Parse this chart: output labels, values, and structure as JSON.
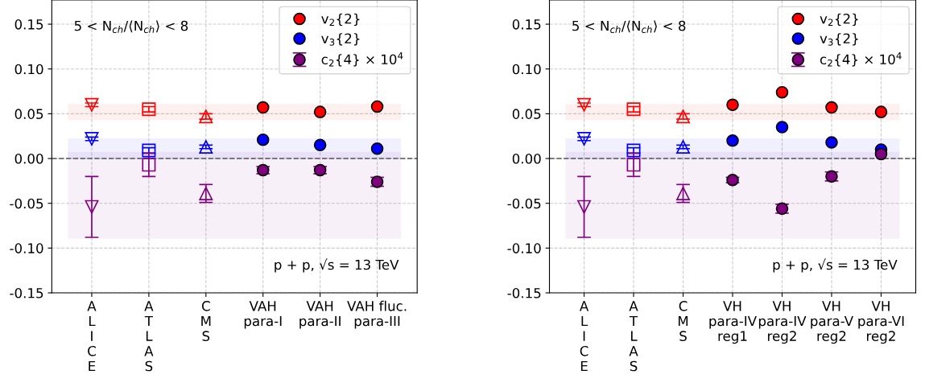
{
  "chart_data": [
    {
      "type": "scatter",
      "categories": [
        "A\nL\nI\nC\nE",
        "A\nT\nL\nA\nS",
        "C\nM\nS",
        "VAH\npara-I",
        "VAH\npara-II",
        "VAH fluc.\npara-III"
      ],
      "series": [
        {
          "name": "v$_{2}${2}",
          "color": "#ff0000",
          "marker": "circle",
          "values": [
            null,
            null,
            null,
            0.057,
            0.052,
            0.058
          ]
        },
        {
          "name": "v$_{3}${2}",
          "color": "#0000ff",
          "marker": "circle",
          "values": [
            null,
            null,
            null,
            0.021,
            0.015,
            0.011
          ]
        },
        {
          "name": "c$_{2}${4} × 10$^{4}$",
          "color": "#800080",
          "marker": "circle",
          "values": [
            null,
            null,
            null,
            -0.013,
            -0.013,
            -0.026
          ],
          "errors": [
            null,
            null,
            null,
            0.004,
            0.004,
            0.005
          ]
        },
        {
          "color": "#ff0000",
          "marker": "triangle_down",
          "values": [
            0.06,
            null,
            null,
            null,
            null,
            null
          ],
          "errors": [
            0.002,
            null,
            null,
            null,
            null,
            null
          ]
        },
        {
          "color": "#0000ff",
          "marker": "triangle_down",
          "values": [
            0.022,
            null,
            null,
            null,
            null,
            null
          ],
          "errors": [
            0.002,
            null,
            null,
            null,
            null,
            null
          ]
        },
        {
          "color": "#800080",
          "marker": "triangle_down",
          "values": [
            -0.054,
            null,
            null,
            null,
            null,
            null
          ],
          "errors": [
            0.034,
            null,
            null,
            null,
            null,
            null
          ]
        },
        {
          "color": "#ff0000",
          "marker": "square",
          "values": [
            null,
            0.055,
            null,
            null,
            null,
            null
          ],
          "errors": [
            null,
            0.003,
            null,
            null,
            null,
            null
          ]
        },
        {
          "color": "#0000ff",
          "marker": "square",
          "values": [
            null,
            0.009,
            null,
            null,
            null,
            null
          ],
          "errors": [
            null,
            0.003,
            null,
            null,
            null,
            null
          ]
        },
        {
          "color": "#800080",
          "marker": "square",
          "values": [
            null,
            -0.007,
            null,
            null,
            null,
            null
          ],
          "errors": [
            null,
            0.013,
            null,
            null,
            null,
            null
          ]
        },
        {
          "color": "#ff0000",
          "marker": "triangle",
          "values": [
            null,
            null,
            0.047,
            null,
            null,
            null
          ],
          "errors": [
            null,
            null,
            0.003,
            null,
            null,
            null
          ]
        },
        {
          "color": "#0000ff",
          "marker": "triangle",
          "values": [
            null,
            null,
            0.013,
            null,
            null,
            null
          ],
          "errors": [
            null,
            null,
            0.002,
            null,
            null,
            null
          ]
        },
        {
          "color": "#800080",
          "marker": "triangle",
          "values": [
            null,
            null,
            -0.039,
            null,
            null,
            null
          ],
          "errors": [
            null,
            null,
            0.01,
            null,
            null,
            null
          ]
        }
      ],
      "ylim": [
        -0.15,
        0.177
      ],
      "yticks": [
        {
          "value": -0.15,
          "label": "-0.15"
        },
        {
          "value": -0.1,
          "label": "-0.10"
        },
        {
          "value": -0.05,
          "label": "-0.05"
        },
        {
          "value": 0,
          "label": "0.00"
        },
        {
          "value": 0.05,
          "label": "0.05"
        },
        {
          "value": 0.1,
          "label": "0.10"
        },
        {
          "value": 0.15,
          "label": "0.15"
        }
      ],
      "ref_lines": [
        {
          "axis": "y",
          "value": 0,
          "color": "#555555",
          "line_style": "dashed"
        }
      ],
      "bands": [
        {
          "axis": "y",
          "from": 0.043,
          "to": 0.061,
          "color": "#ff0000"
        },
        {
          "axis": "y",
          "from": 0.0,
          "to": 0.0225,
          "color": "#0000ff"
        },
        {
          "axis": "y",
          "from": -0.0895,
          "to": 0.0075,
          "color": "#800080"
        }
      ],
      "annotations": [
        "5 < N$_{ch}$/⟨N$_{ch}$⟩ < 8",
        "p + p, √s = 13 TeV"
      ],
      "grid": true,
      "legend": "top right"
    },
    {
      "type": "scatter",
      "categories": [
        "A\nL\nI\nC\nE",
        "A\nT\nL\nA\nS",
        "C\nM\nS",
        "VH\npara-IV\nreg1",
        "VH\npara-IV\nreg2",
        "VH\npara-V\nreg2",
        "VH\npara-VI\nreg2"
      ],
      "series": [
        {
          "name": "v$_{2}${2}",
          "color": "#ff0000",
          "marker": "circle",
          "values": [
            null,
            null,
            null,
            0.06,
            0.074,
            0.057,
            0.052
          ]
        },
        {
          "name": "v$_{3}${2}",
          "color": "#0000ff",
          "marker": "circle",
          "values": [
            null,
            null,
            null,
            0.02,
            0.035,
            0.018,
            0.01
          ]
        },
        {
          "name": "c$_{2}${4} × 10$^{4}$",
          "color": "#800080",
          "marker": "circle",
          "values": [
            null,
            null,
            null,
            -0.024,
            -0.056,
            -0.02,
            0.005
          ],
          "errors": [
            null,
            null,
            null,
            0.003,
            0.005,
            0.005,
            null
          ]
        },
        {
          "color": "#ff0000",
          "marker": "triangle_down",
          "values": [
            0.06,
            null,
            null,
            null,
            null,
            null,
            null
          ],
          "errors": [
            0.002,
            null,
            null,
            null,
            null,
            null,
            null
          ]
        },
        {
          "color": "#0000ff",
          "marker": "triangle_down",
          "values": [
            0.022,
            null,
            null,
            null,
            null,
            null,
            null
          ],
          "errors": [
            0.002,
            null,
            null,
            null,
            null,
            null,
            null
          ]
        },
        {
          "color": "#800080",
          "marker": "triangle_down",
          "values": [
            -0.054,
            null,
            null,
            null,
            null,
            null,
            null
          ],
          "errors": [
            0.034,
            null,
            null,
            null,
            null,
            null,
            null
          ]
        },
        {
          "color": "#ff0000",
          "marker": "square",
          "values": [
            null,
            0.055,
            null,
            null,
            null,
            null,
            null
          ],
          "errors": [
            null,
            0.003,
            null,
            null,
            null,
            null,
            null
          ]
        },
        {
          "color": "#0000ff",
          "marker": "square",
          "values": [
            null,
            0.009,
            null,
            null,
            null,
            null,
            null
          ],
          "errors": [
            null,
            0.003,
            null,
            null,
            null,
            null,
            null
          ]
        },
        {
          "color": "#800080",
          "marker": "square",
          "values": [
            null,
            -0.007,
            null,
            null,
            null,
            null,
            null
          ],
          "errors": [
            null,
            0.013,
            null,
            null,
            null,
            null,
            null
          ]
        },
        {
          "color": "#ff0000",
          "marker": "triangle",
          "values": [
            null,
            null,
            0.047,
            null,
            null,
            null,
            null
          ],
          "errors": [
            null,
            null,
            0.003,
            null,
            null,
            null,
            null
          ]
        },
        {
          "color": "#0000ff",
          "marker": "triangle",
          "values": [
            null,
            null,
            0.013,
            null,
            null,
            null,
            null
          ],
          "errors": [
            null,
            null,
            0.002,
            null,
            null,
            null,
            null
          ]
        },
        {
          "color": "#800080",
          "marker": "triangle",
          "values": [
            null,
            null,
            -0.039,
            null,
            null,
            null,
            null
          ],
          "errors": [
            null,
            null,
            0.01,
            null,
            null,
            null,
            null
          ]
        }
      ],
      "ylim": [
        -0.15,
        0.177
      ],
      "yticks": [
        {
          "value": -0.15,
          "label": "-0.15"
        },
        {
          "value": -0.1,
          "label": "-0.10"
        },
        {
          "value": -0.05,
          "label": "-0.05"
        },
        {
          "value": 0,
          "label": "0.00"
        },
        {
          "value": 0.05,
          "label": "0.05"
        },
        {
          "value": 0.1,
          "label": "0.10"
        },
        {
          "value": 0.15,
          "label": "0.15"
        }
      ],
      "ref_lines": [
        {
          "axis": "y",
          "value": 0,
          "color": "#555555",
          "line_style": "dashed"
        }
      ],
      "bands": [
        {
          "axis": "y",
          "from": 0.043,
          "to": 0.061,
          "color": "#ff0000"
        },
        {
          "axis": "y",
          "from": 0.0,
          "to": 0.0225,
          "color": "#0000ff"
        },
        {
          "axis": "y",
          "from": -0.0895,
          "to": 0.0075,
          "color": "#800080"
        }
      ],
      "annotations": [
        "5 < N$_{ch}$/⟨N$_{ch}$⟩ < 8",
        "p + p, √s = 13 TeV"
      ],
      "grid": true,
      "legend": "top right"
    }
  ]
}
